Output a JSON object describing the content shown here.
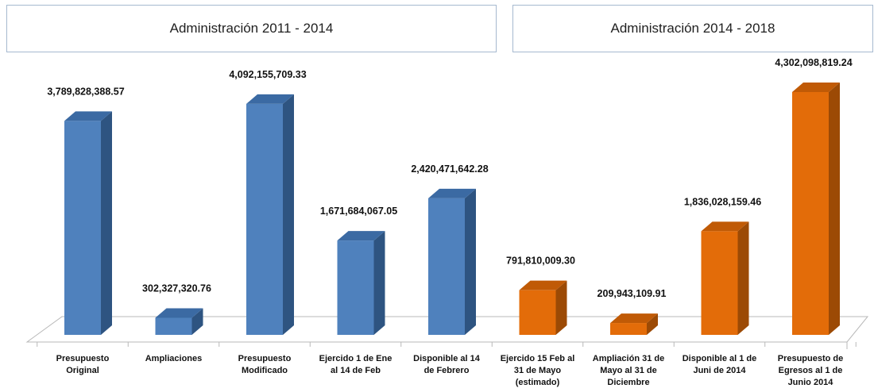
{
  "headers": {
    "left_title": "Administración 2011 - 2014",
    "right_title": "Administración 2014 - 2018"
  },
  "colors": {
    "blue_front": "#4f81bd",
    "blue_side": "#2e5481",
    "blue_top": "#3b6aa3",
    "orange_front": "#e36c09",
    "orange_side": "#9c4a05",
    "orange_top": "#c05a06"
  },
  "chart_data": {
    "type": "bar",
    "categories": [
      [
        "Presupuesto",
        "Original"
      ],
      [
        "Ampliaciones"
      ],
      [
        "Presupuesto",
        "Modificado"
      ],
      [
        "Ejercido 1 de Ene",
        "al 14 de Feb"
      ],
      [
        "Disponible al 14",
        "de Febrero"
      ],
      [
        "Ejercido 15 Feb al",
        "31 de Mayo",
        "(estimado)"
      ],
      [
        "Ampliación 31 de",
        "Mayo al 31 de",
        "Diciembre"
      ],
      [
        "Disponible al 1 de",
        "Juni de 2014"
      ],
      [
        "Presupuesto de",
        "Egresos al 1 de",
        "Junio 2014"
      ]
    ],
    "values": [
      3789828388.57,
      302327320.76,
      4092155709.33,
      1671684067.05,
      2420471642.28,
      791810009.3,
      209943109.91,
      1836028159.46,
      4302098819.24
    ],
    "value_labels": [
      "3,789,828,388.57",
      "302,327,320.76",
      "4,092,155,709.33",
      "1,671,684,067.05",
      "2,420,471,642.28",
      "791,810,009.30",
      "209,943,109.91",
      "1,836,028,159.46",
      "4,302,098,819.24"
    ],
    "series_color_group": [
      "blue",
      "blue",
      "blue",
      "blue",
      "blue",
      "orange",
      "orange",
      "orange",
      "orange"
    ],
    "ylim": [
      0,
      4302098819.24
    ],
    "grid": false,
    "legend": "none",
    "style": "3d-bar"
  }
}
